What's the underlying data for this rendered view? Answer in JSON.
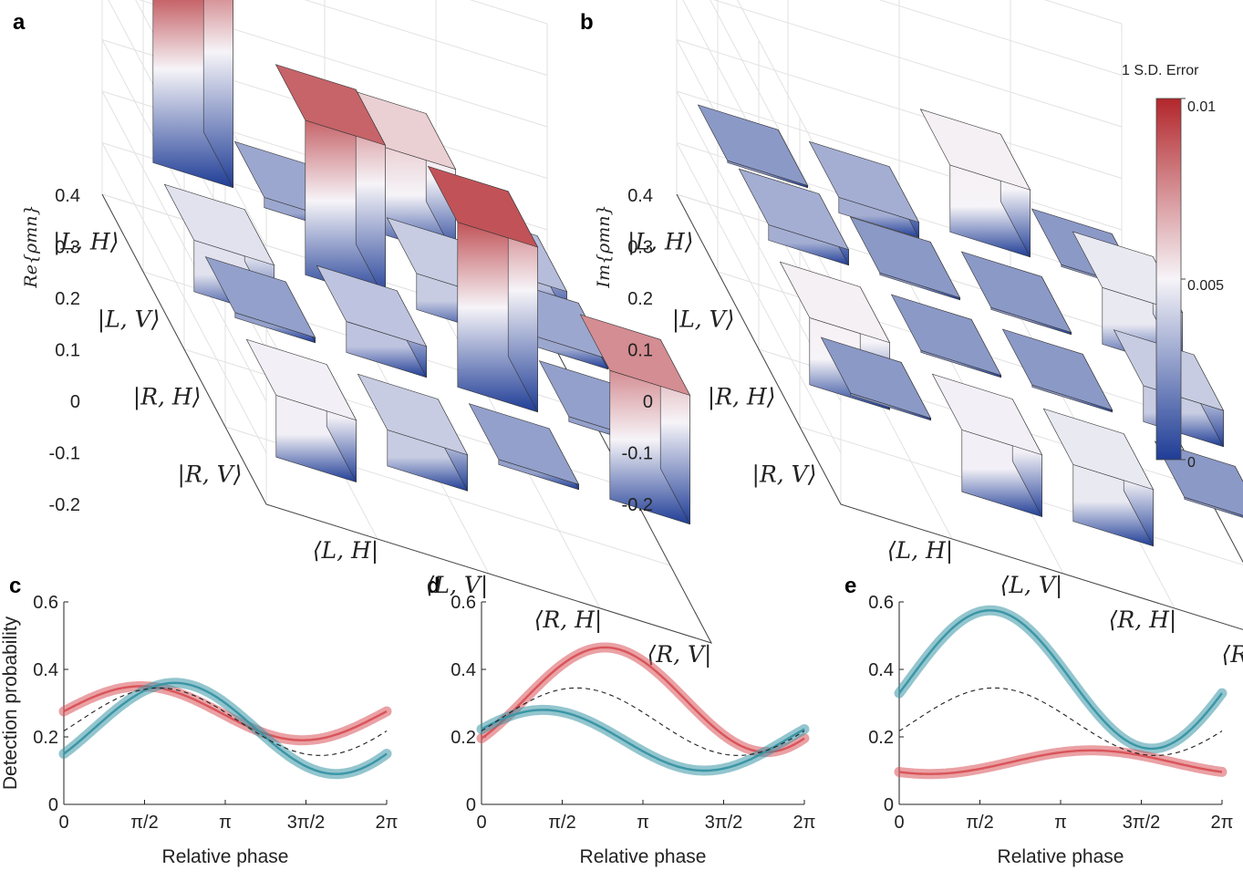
{
  "panels": {
    "a": "a",
    "b": "b",
    "c": "c",
    "d": "d",
    "e": "e"
  },
  "colorbar": {
    "title": "1 S.D. Error",
    "ticks": [
      "0.01",
      "0.005",
      "0"
    ],
    "colors": {
      "high": "#b2262b",
      "mid": "#f6f4f8",
      "low": "#1f3d96"
    }
  },
  "chart_data": [
    {
      "id": "a",
      "type": "bar3d",
      "zlabel": "Re{ρmn}",
      "zticks": [
        "0.4",
        "0.3",
        "0.2",
        "0.1",
        "0",
        "-0.1",
        "-0.2"
      ],
      "zlim": [
        -0.2,
        0.4
      ],
      "row_labels": [
        "|L, H⟩",
        "|L, V⟩",
        "|R, H⟩",
        "|R, V⟩"
      ],
      "col_labels": [
        "⟨L, H|",
        "⟨L, V|",
        "⟨R, H|",
        "⟨R, V|"
      ],
      "values": [
        [
          0.37,
          -0.02,
          0.17,
          -0.05
        ],
        [
          -0.1,
          0.3,
          0.07,
          0.02
        ],
        [
          0.01,
          0.06,
          0.32,
          0.01
        ],
        [
          -0.12,
          -0.07,
          0.01,
          0.25
        ]
      ]
    },
    {
      "id": "b",
      "type": "bar3d",
      "zlabel": "Im{ρmn}",
      "zticks": [
        "0.4",
        "0.3",
        "0.2",
        "0.1",
        "0",
        "-0.1",
        "-0.2"
      ],
      "zlim": [
        -0.2,
        0.4
      ],
      "row_labels": [
        "|L, H⟩",
        "|L, V⟩",
        "|R, H⟩",
        "|R, V⟩"
      ],
      "col_labels": [
        "⟨L, H|",
        "⟨L, V|",
        "⟨R, H|",
        "⟨R, V|"
      ],
      "values": [
        [
          0.0,
          -0.03,
          0.13,
          0.0
        ],
        [
          0.03,
          0.0,
          0.0,
          0.11
        ],
        [
          -0.13,
          0.0,
          0.0,
          0.07
        ],
        [
          0.0,
          -0.12,
          -0.11,
          0.0
        ]
      ]
    },
    {
      "id": "c",
      "type": "line",
      "xlabel": "Relative phase",
      "ylabel": "Detection probability",
      "xticks": [
        "0",
        "π/2",
        "π",
        "3π/2",
        "2π"
      ],
      "yticks": [
        "0",
        "0.2",
        "0.4",
        "0.6"
      ],
      "ylim": [
        0,
        0.6
      ],
      "series": [
        {
          "name": "red",
          "color": "#d9545a",
          "offset": 0.27,
          "amp": 0.08,
          "peak": 1.5
        },
        {
          "name": "teal",
          "color": "#3a96a6",
          "offset": 0.225,
          "amp": 0.135,
          "peak": 2.16
        },
        {
          "name": "dashed",
          "color": "#222222",
          "offset": 0.245,
          "amp": 0.1,
          "peak": 1.85
        }
      ]
    },
    {
      "id": "d",
      "type": "line",
      "xlabel": "Relative phase",
      "xticks": [
        "0",
        "π/2",
        "π",
        "3π/2",
        "2π"
      ],
      "yticks": [
        "0",
        "0.2",
        "0.4",
        "0.6"
      ],
      "ylim": [
        0,
        0.6
      ],
      "series": [
        {
          "name": "red",
          "color": "#d9545a",
          "offset": 0.31,
          "amp": 0.155,
          "peak": 2.4
        },
        {
          "name": "teal",
          "color": "#3a96a6",
          "offset": 0.19,
          "amp": 0.09,
          "peak": 1.2
        },
        {
          "name": "dashed",
          "color": "#222222",
          "offset": 0.245,
          "amp": 0.1,
          "peak": 1.85
        }
      ]
    },
    {
      "id": "e",
      "type": "line",
      "xlabel": "Relative phase",
      "xticks": [
        "0",
        "π/2",
        "π",
        "3π/2",
        "2π"
      ],
      "yticks": [
        "0",
        "0.2",
        "0.4",
        "0.6"
      ],
      "ylim": [
        0,
        0.6
      ],
      "series": [
        {
          "name": "teal",
          "color": "#3a96a6",
          "offset": 0.37,
          "amp": 0.205,
          "peak": 1.77
        },
        {
          "name": "red",
          "color": "#d9545a",
          "offset": 0.125,
          "amp": 0.035,
          "peak": 3.74
        },
        {
          "name": "dashed",
          "color": "#222222",
          "offset": 0.245,
          "amp": 0.1,
          "peak": 1.85
        }
      ]
    }
  ]
}
